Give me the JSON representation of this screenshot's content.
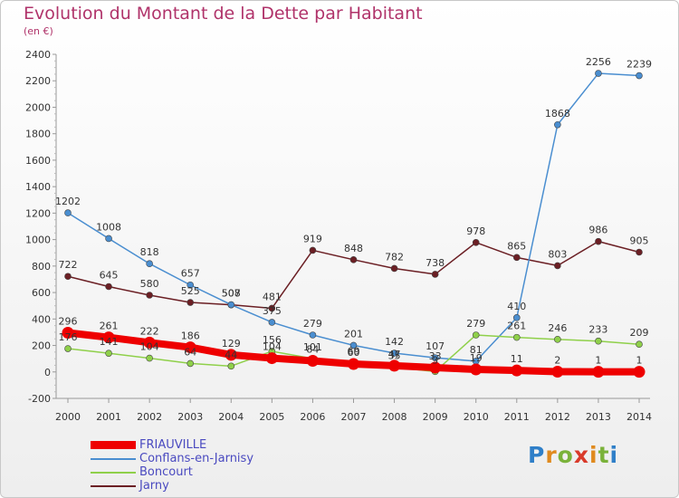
{
  "title": "Evolution du Montant de la Dette par Habitant",
  "unit": "(en €)",
  "logo": {
    "letters": [
      "P",
      "r",
      "o",
      "x",
      "i",
      "t",
      "i"
    ],
    "colors": [
      "#2f7fc8",
      "#e08a1e",
      "#7ab23a",
      "#d93a2a",
      "#e08a1e",
      "#7ab23a",
      "#2f7fc8"
    ]
  },
  "chart_data": {
    "type": "line",
    "title": "Evolution du Montant de la Dette par Habitant",
    "ylabel": "(en €)",
    "xlabel": "",
    "x": [
      "2000",
      "2001",
      "2002",
      "2003",
      "2004",
      "2005",
      "2006",
      "2007",
      "2008",
      "2009",
      "2010",
      "2011",
      "2012",
      "2013",
      "2014"
    ],
    "ylim": [
      -200,
      2400
    ],
    "yticks": [
      -200,
      0,
      200,
      400,
      600,
      800,
      1000,
      1200,
      1400,
      1600,
      1800,
      2000,
      2200,
      2400
    ],
    "grid": false,
    "legend": "bottom-left",
    "series": [
      {
        "name": "Jarny",
        "color": "#6b1f24",
        "values": [
          722,
          645,
          580,
          525,
          507,
          481,
          919,
          848,
          782,
          738,
          978,
          865,
          803,
          986,
          905
        ]
      },
      {
        "name": "Conflans-en-Jarnisy",
        "color": "#4a8ed0",
        "values": [
          1202,
          1008,
          818,
          657,
          508,
          375,
          279,
          201,
          142,
          107,
          81,
          410,
          1868,
          2256,
          2239
        ]
      },
      {
        "name": "Boncourt",
        "color": "#8fd04a",
        "values": [
          176,
          141,
          104,
          64,
          44,
          156,
          101,
          69,
          35,
          3,
          279,
          261,
          246,
          233,
          209
        ]
      },
      {
        "name": "FRIAUVILLE",
        "color": "#ee0000",
        "values": [
          296,
          261,
          222,
          186,
          129,
          104,
          84,
          60,
          47,
          33,
          19,
          11,
          2,
          1,
          1
        ]
      }
    ]
  }
}
